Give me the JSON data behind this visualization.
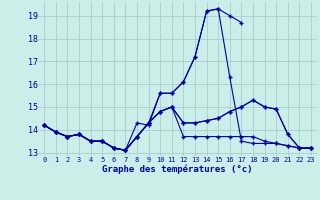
{
  "background_color": "#cceee8",
  "grid_color": "#aacccc",
  "line_color": "#0000aa",
  "hours": [
    0,
    1,
    2,
    3,
    4,
    5,
    6,
    7,
    8,
    9,
    10,
    11,
    12,
    13,
    14,
    15,
    16,
    17,
    18,
    19,
    20,
    21,
    22,
    23
  ],
  "curves": [
    [
      14.2,
      13.9,
      13.7,
      13.8,
      13.5,
      13.5,
      13.2,
      13.1,
      14.3,
      14.2,
      15.6,
      15.6,
      16.1,
      17.2,
      19.2,
      19.3,
      19.0,
      18.7,
      null,
      null,
      null,
      null,
      null,
      null
    ],
    [
      14.2,
      13.9,
      13.7,
      13.8,
      13.5,
      13.5,
      13.2,
      13.1,
      13.7,
      14.3,
      15.6,
      15.6,
      16.1,
      17.2,
      19.2,
      19.3,
      16.3,
      13.5,
      13.4,
      13.4,
      13.4,
      13.3,
      13.2,
      13.2
    ],
    [
      14.2,
      13.9,
      13.7,
      13.8,
      13.5,
      13.5,
      13.2,
      13.1,
      13.7,
      14.3,
      14.8,
      15.0,
      14.3,
      14.3,
      14.4,
      14.5,
      14.8,
      15.0,
      15.3,
      15.0,
      14.9,
      13.8,
      13.2,
      13.2
    ],
    [
      14.2,
      13.9,
      13.7,
      13.8,
      13.5,
      13.5,
      13.2,
      13.1,
      13.7,
      14.3,
      14.8,
      15.0,
      14.3,
      14.3,
      14.4,
      14.5,
      14.8,
      15.0,
      15.3,
      15.0,
      14.9,
      13.8,
      13.2,
      13.2
    ],
    [
      14.2,
      13.9,
      13.7,
      13.8,
      13.5,
      13.5,
      13.2,
      13.1,
      13.7,
      14.3,
      14.8,
      15.0,
      13.7,
      13.7,
      13.7,
      13.7,
      13.7,
      13.7,
      13.7,
      13.5,
      13.4,
      13.3,
      13.2,
      13.2
    ]
  ],
  "ylim": [
    12.85,
    19.6
  ],
  "yticks": [
    13,
    14,
    15,
    16,
    17,
    18,
    19
  ],
  "xlim": [
    -0.5,
    23.5
  ],
  "xlabel": "Graphe des températures (°c)"
}
